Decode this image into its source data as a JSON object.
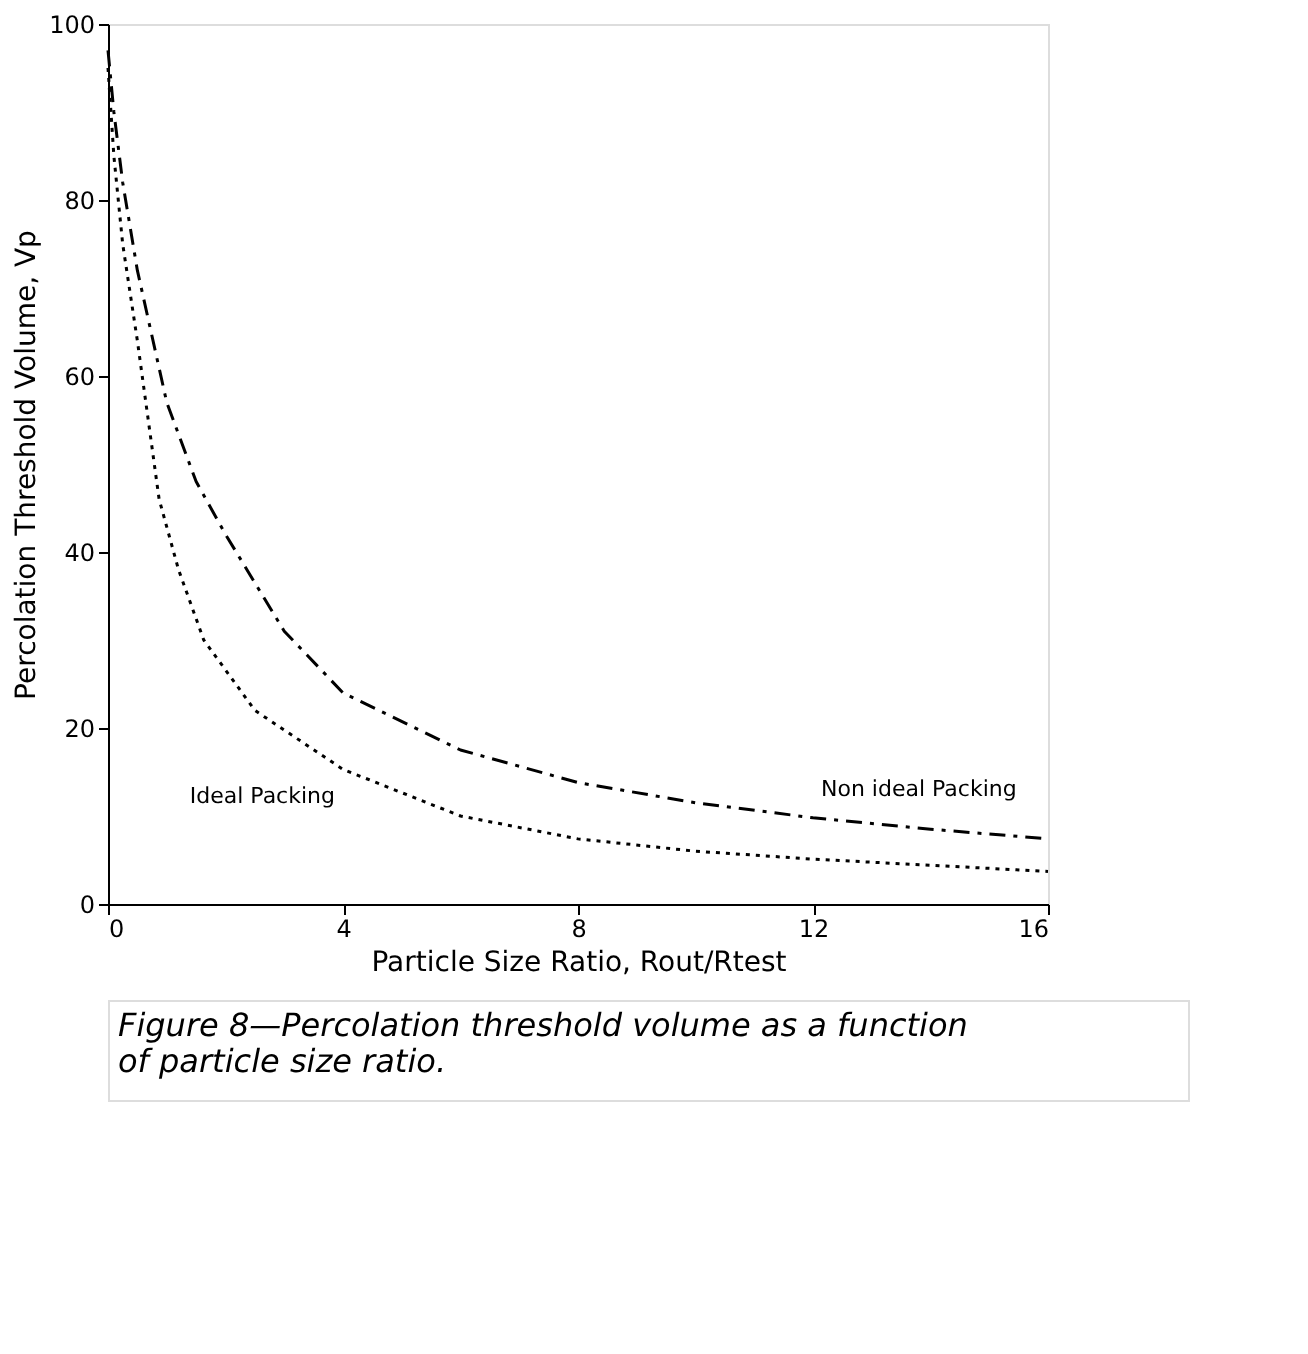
{
  "chart_data": {
    "type": "line",
    "xlabel": "Particle Size Ratio, Rout/Rtest",
    "ylabel": "Percolation Threshold Volume, Vp",
    "xlim": [
      0,
      16
    ],
    "xticks": [
      0,
      4,
      8,
      12,
      16
    ],
    "ylim": [
      0,
      100
    ],
    "yticks": [
      0,
      20,
      40,
      60,
      80,
      100
    ],
    "grid": false,
    "marker": "none",
    "series": [
      {
        "name": "Non ideal Packing",
        "color": "#000000",
        "line_style": "dashed",
        "x": [
          0,
          0.1,
          0.25,
          0.5,
          1,
          1.5,
          2,
          3,
          4,
          6,
          8,
          10,
          12,
          14,
          16
        ],
        "values": [
          97,
          90,
          82,
          72,
          57,
          48,
          42,
          31,
          24,
          17.5,
          13.8,
          11.5,
          9.8,
          8.5,
          7.4
        ]
      },
      {
        "name": "Ideal Packing",
        "color": "#000000",
        "line_style": "dotted",
        "x": [
          0,
          0.1,
          0.25,
          0.5,
          0.87,
          1.2,
          1.63,
          2.5,
          4,
          6,
          8,
          10,
          12,
          14,
          16
        ],
        "values": [
          95,
          85,
          75,
          64,
          46,
          38,
          30,
          22,
          15.3,
          10,
          7.4,
          6,
          5.1,
          4.4,
          3.7
        ]
      }
    ],
    "annotations": [
      "Figure 8—Percolation threshold volume as a function of particle size ratio."
    ]
  }
}
